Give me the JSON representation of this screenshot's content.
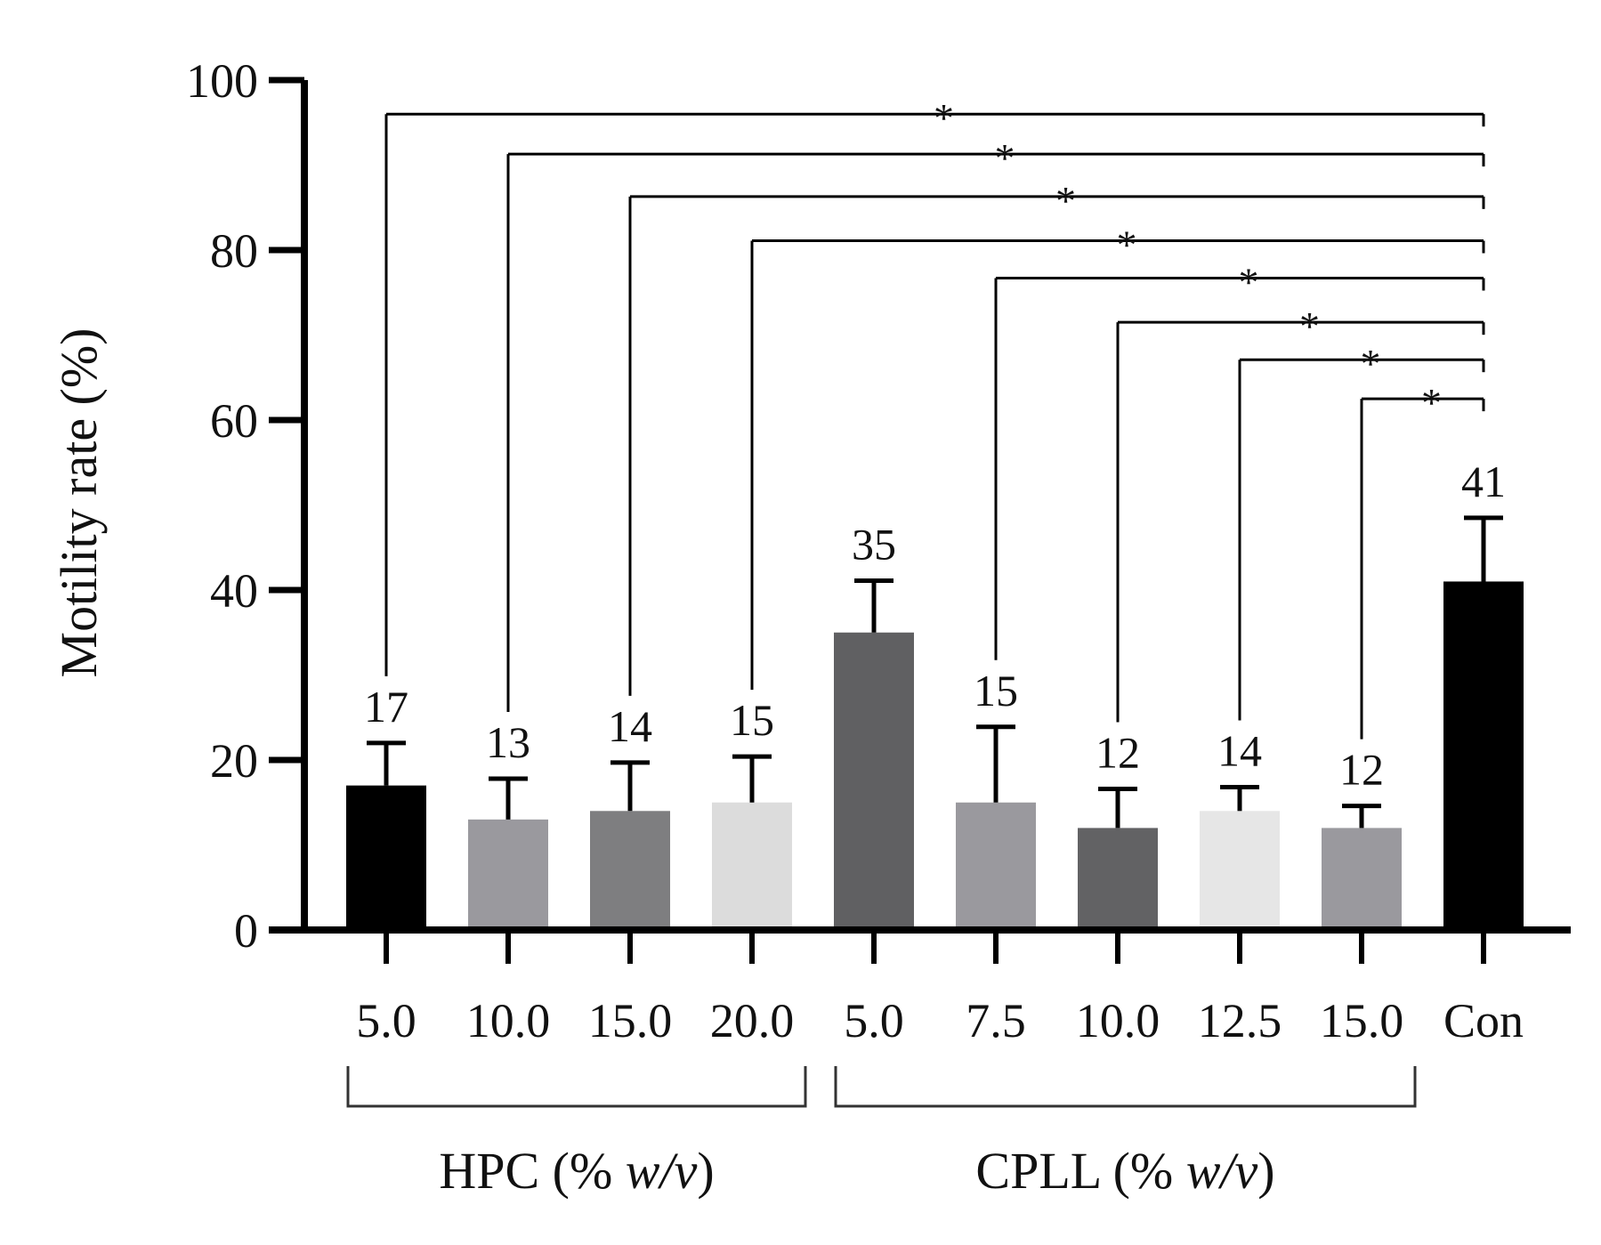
{
  "chart_data": {
    "type": "bar",
    "title": "",
    "xlabel": "",
    "ylabel": "Motility rate (%)",
    "ylim": [
      0,
      100
    ],
    "yticks": [
      0,
      20,
      40,
      60,
      80,
      100
    ],
    "categories": [
      "5.0",
      "10.0",
      "15.0",
      "20.0",
      "5.0",
      "7.5",
      "10.0",
      "12.5",
      "15.0",
      "Con"
    ],
    "values": [
      17,
      13,
      14,
      15,
      35,
      15,
      12,
      14,
      12,
      41
    ],
    "error_upper": [
      22,
      17.8,
      19.7,
      20.4,
      41.1,
      23.9,
      16.6,
      16.8,
      14.6,
      48.5
    ],
    "value_labels": [
      "17",
      "13",
      "14",
      "15",
      "35",
      "15",
      "12",
      "14",
      "12",
      "41"
    ],
    "bar_colors": [
      "#000000",
      "#9a999e",
      "#7e7e80",
      "#dcdcdc",
      "#606062",
      "#9a999e",
      "#626264",
      "#e6e6e6",
      "#9a999e",
      "#000000"
    ],
    "groups": [
      {
        "label_main": "HPC (% ",
        "label_italic": "w/v",
        "label_end": ")",
        "start_index": 0,
        "end_index": 3
      },
      {
        "label_main": "CPLL (% ",
        "label_italic": "w/v",
        "label_end": ")",
        "start_index": 4,
        "end_index": 8
      }
    ],
    "significance": [
      {
        "from_index": 0,
        "to_index": 9,
        "y": 96,
        "label": "*"
      },
      {
        "from_index": 1,
        "to_index": 9,
        "y": 91.3,
        "label": "*"
      },
      {
        "from_index": 2,
        "to_index": 9,
        "y": 86.3,
        "label": "*"
      },
      {
        "from_index": 3,
        "to_index": 9,
        "y": 81.1,
        "label": "*"
      },
      {
        "from_index": 5,
        "to_index": 9,
        "y": 76.7,
        "label": "*"
      },
      {
        "from_index": 6,
        "to_index": 9,
        "y": 71.5,
        "label": "*"
      },
      {
        "from_index": 7,
        "to_index": 9,
        "y": 67.1,
        "label": "*"
      },
      {
        "from_index": 8,
        "to_index": 9,
        "y": 62.5,
        "label": "*"
      }
    ]
  }
}
